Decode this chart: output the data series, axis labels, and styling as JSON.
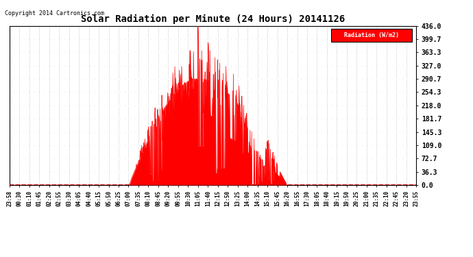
{
  "title": "Solar Radiation per Minute (24 Hours) 20141126",
  "copyright_text": "Copyright 2014 Cartronics.com",
  "legend_label": "Radiation (W/m2)",
  "background_color": "#ffffff",
  "plot_bg_color": "#ffffff",
  "fill_color": "#ff0000",
  "line_color": "#ff0000",
  "grid_color": "#888888",
  "ytick_labels": [
    "0.0",
    "36.3",
    "72.7",
    "109.0",
    "145.3",
    "181.7",
    "218.0",
    "254.3",
    "290.7",
    "327.0",
    "363.3",
    "399.7",
    "436.0"
  ],
  "ytick_values": [
    0.0,
    36.3,
    72.7,
    109.0,
    145.3,
    181.7,
    218.0,
    254.3,
    290.7,
    327.0,
    363.3,
    399.7,
    436.0
  ],
  "ymax": 436.0,
  "ymin": 0.0,
  "xtick_labels": [
    "23:58",
    "00:30",
    "01:10",
    "01:45",
    "02:20",
    "02:55",
    "03:30",
    "04:05",
    "04:40",
    "05:15",
    "05:50",
    "06:25",
    "07:00",
    "07:35",
    "08:10",
    "08:45",
    "09:20",
    "09:55",
    "10:30",
    "11:05",
    "11:40",
    "12:15",
    "12:50",
    "13:25",
    "14:00",
    "14:35",
    "15:10",
    "15:45",
    "16:20",
    "16:55",
    "17:30",
    "18:05",
    "18:40",
    "19:15",
    "19:50",
    "20:25",
    "21:00",
    "21:35",
    "22:10",
    "22:45",
    "23:20",
    "23:55"
  ]
}
